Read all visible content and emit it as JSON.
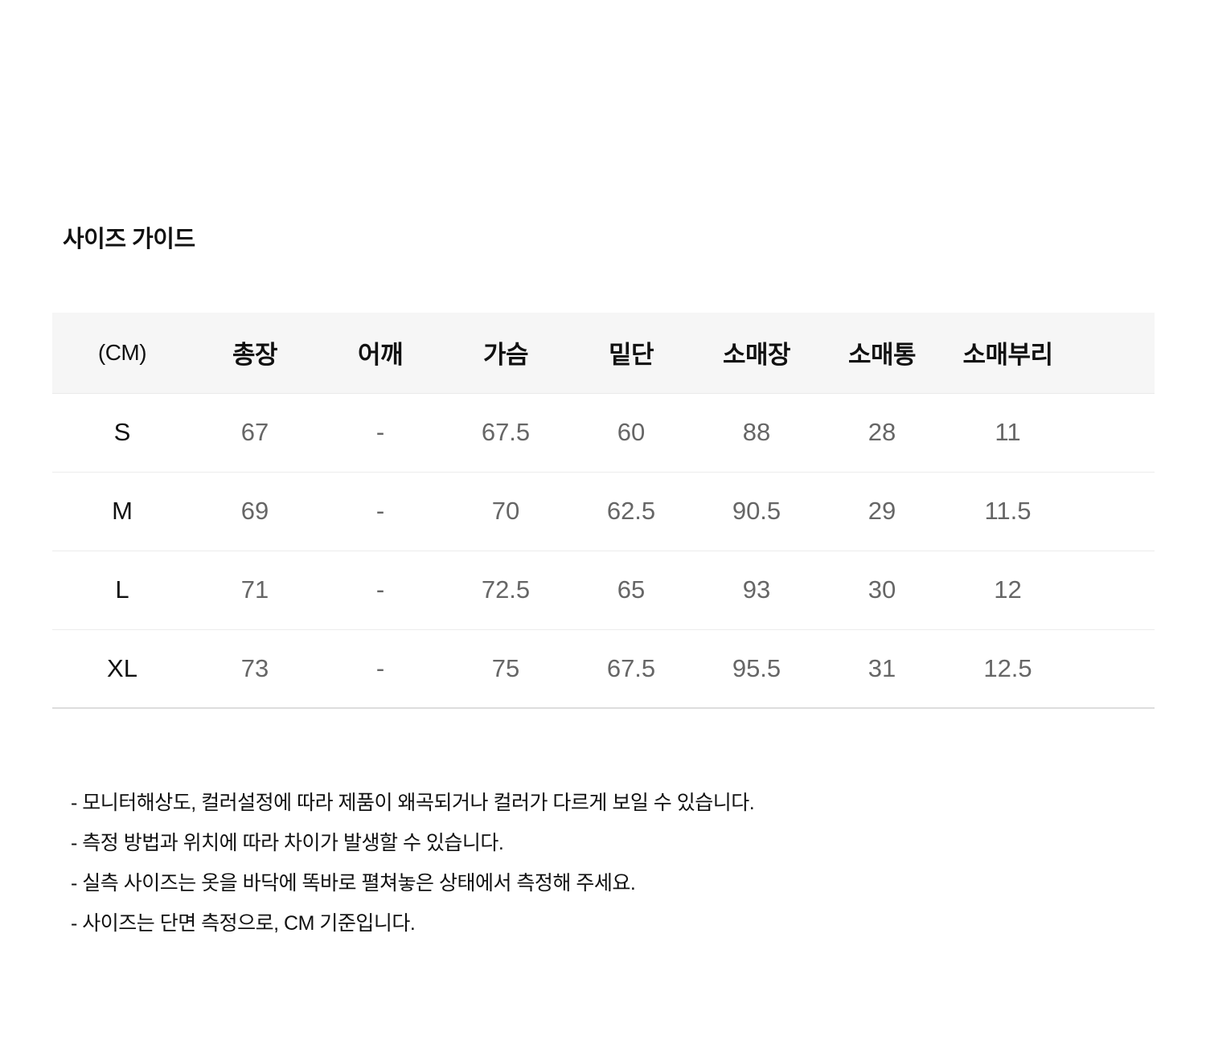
{
  "page": {
    "title": "사이즈 가이드"
  },
  "size_table": {
    "unit_label": "(CM)",
    "columns": [
      "총장",
      "어깨",
      "가슴",
      "밑단",
      "소매장",
      "소매통",
      "소매부리"
    ],
    "rows": [
      {
        "size": "S",
        "values": [
          "67",
          "-",
          "67.5",
          "60",
          "88",
          "28",
          "11"
        ]
      },
      {
        "size": "M",
        "values": [
          "69",
          "-",
          "70",
          "62.5",
          "90.5",
          "29",
          "11.5"
        ]
      },
      {
        "size": "L",
        "values": [
          "71",
          "-",
          "72.5",
          "65",
          "93",
          "30",
          "12"
        ]
      },
      {
        "size": "XL",
        "values": [
          "73",
          "-",
          "75",
          "67.5",
          "95.5",
          "31",
          "12.5"
        ]
      }
    ]
  },
  "notes": [
    "- 모니터해상도, 컬러설정에 따라 제품이 왜곡되거나 컬러가 다르게 보일 수 있습니다.",
    "- 측정 방법과 위치에 따라 차이가 발생할 수 있습니다.",
    "- 실측 사이즈는 옷을 바닥에 똑바로 펼쳐놓은 상태에서 측정해 주세요.",
    "- 사이즈는 단면 측정으로, CM 기준입니다."
  ]
}
